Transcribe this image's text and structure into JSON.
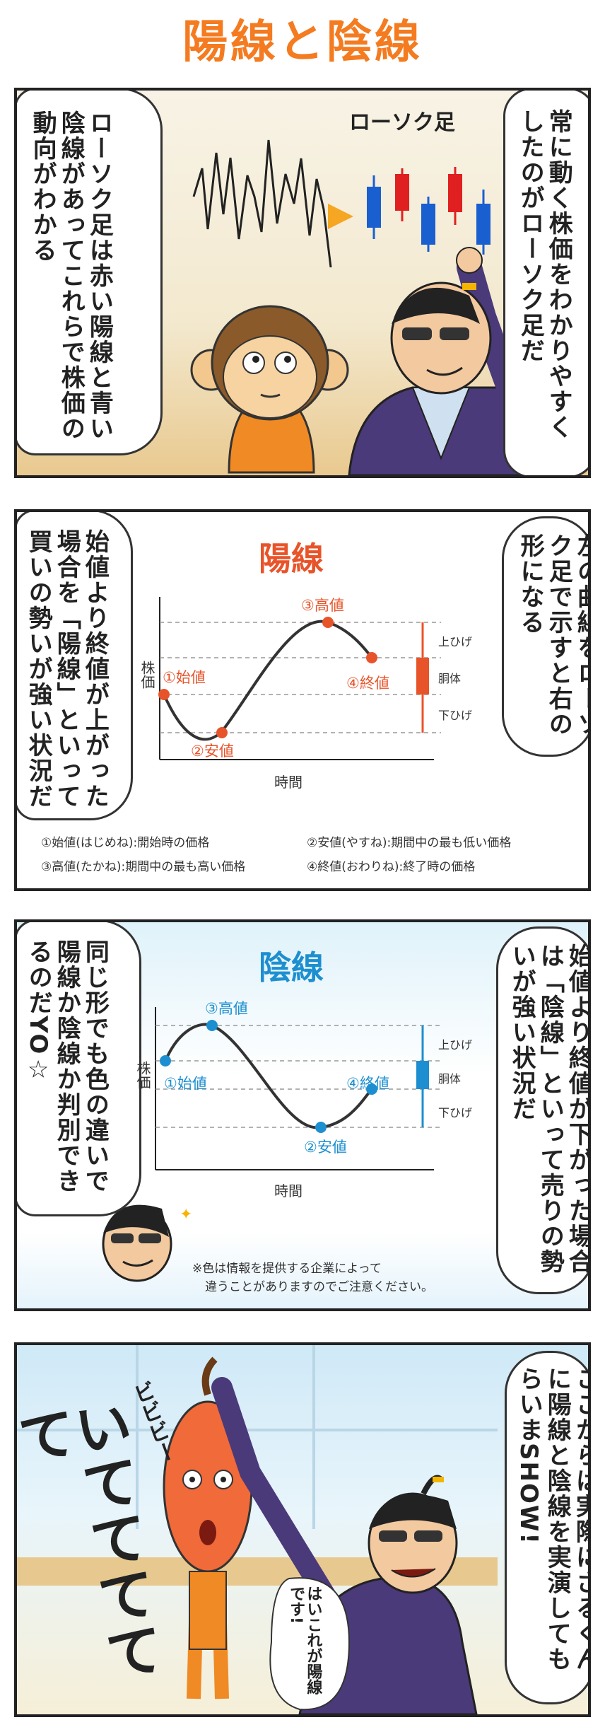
{
  "title": "陽線と陰線",
  "panel1": {
    "right_text": "常に動く株価をわかりやすくしたのがローソク足だ",
    "left_text": "ローソク足は赤い陽線と青い陰線があってこれらで株価の動向がわかる",
    "candle_label": "ローソク足"
  },
  "panel2": {
    "right_text": "左の曲線をローソク足で示すと右の形になる",
    "left_text": "始値より終値が上がった場合を「陽線」といって買いの勢いが強い状況だ",
    "chart_title": "陽線",
    "y_label": "株価",
    "x_label": "時間",
    "points": {
      "open": "①始値",
      "low": "②安値",
      "high": "③高値",
      "close": "④終値"
    },
    "candle_labels": {
      "upper": "上ひげ",
      "body": "胴体",
      "lower": "下ひげ"
    },
    "legend": {
      "open": "①始値(はじめね):開始時の価格",
      "low": "②安値(やすね):期間中の最も低い価格",
      "high": "③高値(たかね):期間中の最も高い価格",
      "close": "④終値(おわりね):終了時の価格"
    },
    "color": "#e8542a"
  },
  "panel3": {
    "right_text": "始値より終値が下がった場合は「陰線」といって売りの勢いが強い状況だ",
    "left_text": "同じ形でも色の違いで陽線か陰線か判別できるのだYO☆",
    "chart_title": "陰線",
    "y_label": "株価",
    "x_label": "時間",
    "points": {
      "high": "③高値",
      "open": "①始値",
      "close": "④終値",
      "low": "②安値"
    },
    "candle_labels": {
      "upper": "上ひげ",
      "body": "胴体",
      "lower": "下ひげ"
    },
    "note_1": "※色は情報を提供する企業によって",
    "note_2": "違うことがありますのでご注意ください。",
    "color": "#1d8fd0"
  },
  "panel4": {
    "right_text": "ここからは実際にさるくんに陽線と陰線を実演してもらいまSHOW!",
    "sfx_pain": "いててててて",
    "sfx_zap": "ビビビー",
    "speech": "はいこれが陽線です!"
  }
}
